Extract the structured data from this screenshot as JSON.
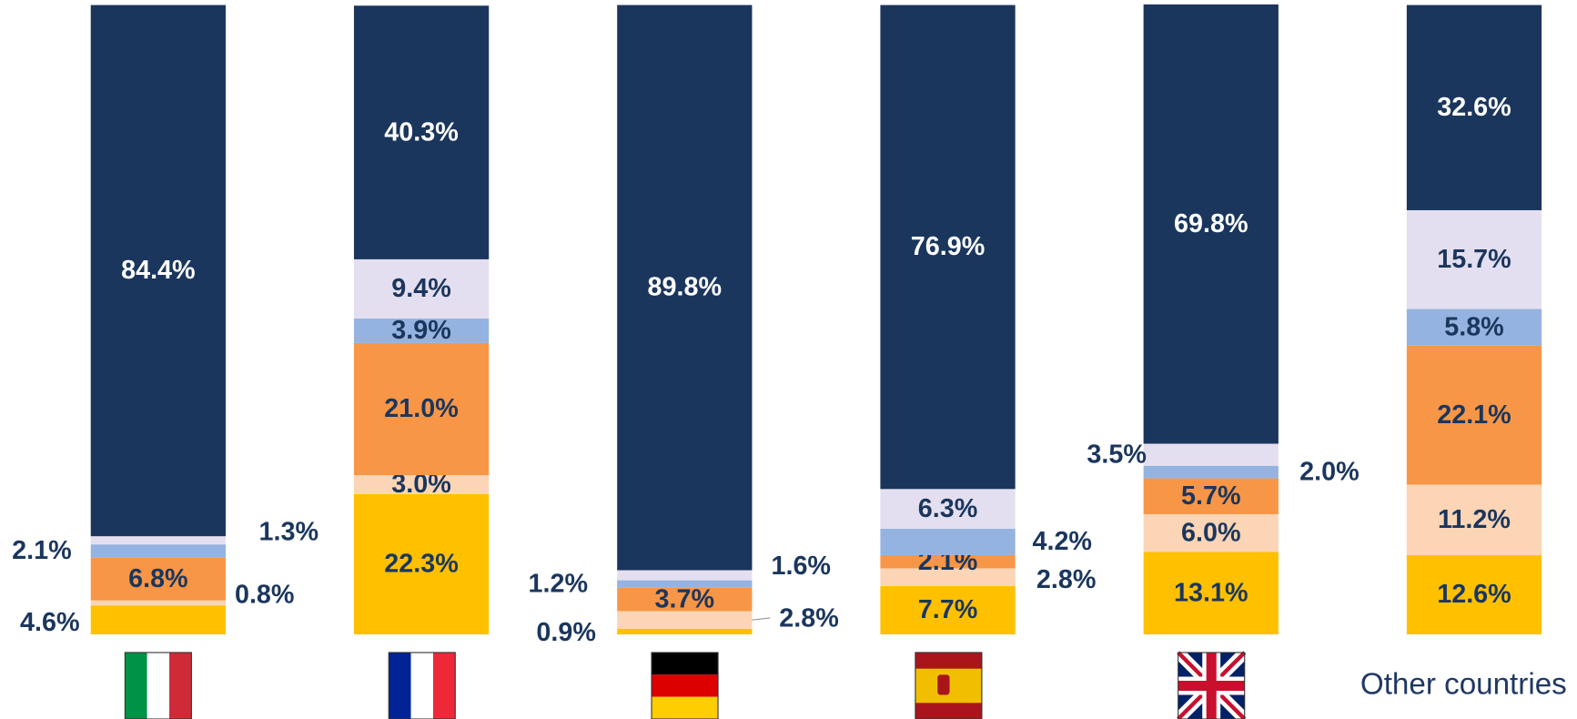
{
  "chart_data": {
    "type": "stacked_bar",
    "categories": [
      null,
      null,
      null,
      null,
      null,
      "Other countries"
    ],
    "ylim": [
      0,
      100
    ],
    "series": [
      {
        "color": "#FFC000",
        "values": [
          4.6,
          22.3,
          0.9,
          7.7,
          13.1,
          12.6
        ],
        "value_labels": [
          "4.6%",
          "22.3%",
          "0.9%",
          "7.7%",
          "13.1%",
          "12.6%"
        ]
      },
      {
        "color": "#FBD5B5",
        "values": [
          0.8,
          3.0,
          2.8,
          2.8,
          6.0,
          11.2
        ],
        "value_labels": [
          "0.8%",
          "3.0%",
          "2.8%",
          "2.8%",
          "6.0%",
          "11.2%"
        ]
      },
      {
        "color": "#F79646",
        "values": [
          6.8,
          21.0,
          3.7,
          2.1,
          5.7,
          22.1
        ],
        "value_labels": [
          "6.8%",
          "21.0%",
          "3.7%",
          "2.1%",
          "5.7%",
          "22.1%"
        ]
      },
      {
        "color": "#95B3E0",
        "values": [
          2.1,
          3.9,
          1.2,
          4.2,
          2.0,
          5.8
        ],
        "value_labels": [
          "2.1%",
          "3.9%",
          "1.2%",
          "4.2%",
          "2.0%",
          "5.8%"
        ]
      },
      {
        "color": "#E4DFF0",
        "values": [
          1.3,
          9.4,
          1.6,
          6.3,
          3.5,
          15.7
        ],
        "value_labels": [
          "1.3%",
          "9.4%",
          "1.6%",
          "6.3%",
          "3.5%",
          "15.7%"
        ]
      },
      {
        "color": "#1B365D",
        "values": [
          84.4,
          40.3,
          89.8,
          76.9,
          69.8,
          32.6
        ],
        "value_labels": [
          "84.4%",
          "40.3%",
          "89.8%",
          "76.9%",
          "69.8%",
          "32.6%"
        ]
      }
    ]
  }
}
